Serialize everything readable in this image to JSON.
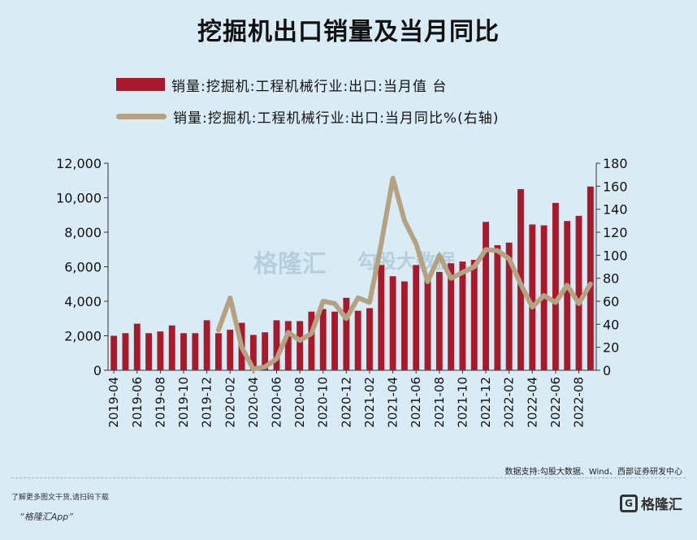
{
  "title": "挖掘机出口销量及当月同比",
  "legend": {
    "bar_label": "销量:挖掘机:工程机械行业:出口:当月值  台",
    "line_label": "销量:挖掘机:工程机械行业:出口:当月同比%(右轴)"
  },
  "colors": {
    "bar": "#a8192b",
    "line": "#b5a283",
    "background": "#d9ecf6"
  },
  "source": "数据支持:勾股大数据、Wind、西部证券研发中心",
  "footer": {
    "note": "了解更多图文干货,请扫码下载",
    "app": "“格隆汇App”"
  },
  "watermark": {
    "brand": "格隆汇",
    "data_brand": "勾股大数据"
  },
  "brand": "格隆汇",
  "chart_data": {
    "type": "bar",
    "title": "挖掘机出口销量及当月同比",
    "x_tick_labels": [
      "2019-04",
      "2019-06",
      "2019-08",
      "2019-10",
      "2019-12",
      "2020-02",
      "2020-04",
      "2020-06",
      "2020-08",
      "2020-10",
      "2020-12",
      "2021-02",
      "2021-04",
      "2021-06",
      "2021-08",
      "2021-10",
      "2021-12",
      "2022-02",
      "2022-04",
      "2022-06",
      "2022-08"
    ],
    "categories": [
      "2019-04",
      "2019-05",
      "2019-06",
      "2019-07",
      "2019-08",
      "2019-09",
      "2019-10",
      "2019-11",
      "2019-12",
      "2020-01",
      "2020-02",
      "2020-03",
      "2020-04",
      "2020-05",
      "2020-06",
      "2020-07",
      "2020-08",
      "2020-09",
      "2020-10",
      "2020-11",
      "2020-12",
      "2021-01",
      "2021-02",
      "2021-03",
      "2021-04",
      "2021-05",
      "2021-06",
      "2021-07",
      "2021-08",
      "2021-09",
      "2021-10",
      "2021-11",
      "2021-12",
      "2022-01",
      "2022-02",
      "2022-03",
      "2022-04",
      "2022-05",
      "2022-06",
      "2022-07",
      "2022-08",
      "2022-09"
    ],
    "series": [
      {
        "name": "销量:挖掘机:工程机械行业:出口:当月值  台",
        "axis": "left",
        "values": [
          2000,
          2150,
          2700,
          2150,
          2250,
          2600,
          2150,
          2150,
          2900,
          2150,
          2350,
          2750,
          2050,
          2200,
          2900,
          2850,
          2850,
          3400,
          3550,
          3400,
          4200,
          3450,
          3600,
          6100,
          5450,
          5150,
          6100,
          5350,
          5700,
          6200,
          6300,
          6400,
          8600,
          7250,
          7400,
          10500,
          8450,
          8400,
          9700,
          8650,
          8950,
          10650
        ]
      },
      {
        "name": "销量:挖掘机:工程机械行业:出口:当月同比%(右轴)",
        "axis": "right",
        "type": "line",
        "values": [
          null,
          null,
          null,
          null,
          null,
          null,
          null,
          null,
          null,
          35,
          63,
          20,
          1,
          3,
          10,
          33,
          26,
          32,
          60,
          58,
          45,
          63,
          59,
          110,
          167,
          130,
          110,
          77,
          100,
          80,
          85,
          90,
          105,
          104,
          97,
          75,
          55,
          65,
          59,
          74,
          58,
          75
        ]
      }
    ],
    "y_left": {
      "min": 0,
      "max": 12000,
      "ticks": [
        0,
        2000,
        4000,
        6000,
        8000,
        10000,
        12000
      ],
      "tick_labels": [
        "0",
        "2,000",
        "4,000",
        "6,000",
        "8,000",
        "10,000",
        "12,000"
      ]
    },
    "y_right": {
      "min": 0,
      "max": 180,
      "ticks": [
        0,
        20,
        40,
        60,
        80,
        100,
        120,
        140,
        160,
        180
      ]
    },
    "grid": false,
    "legend_position": "top"
  }
}
